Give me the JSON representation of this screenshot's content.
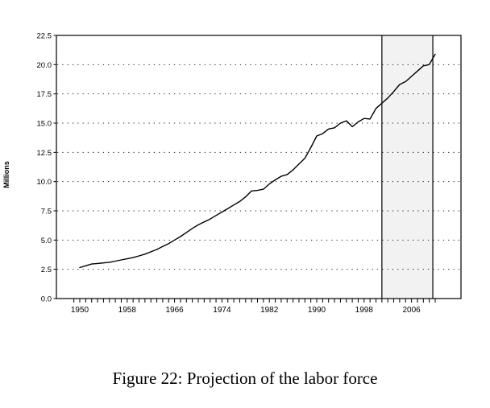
{
  "figure": {
    "caption": "Figure 22: Projection of the labor force"
  },
  "chart_data": {
    "type": "line",
    "title": "",
    "xlabel": "",
    "ylabel": "Millions",
    "ylim": [
      0,
      22.5
    ],
    "xlim": [
      1946,
      2014
    ],
    "grid": "horizontal-dotted",
    "legend": "none",
    "line_color": "#000000",
    "background_color": "#ffffff",
    "y_ticks": [
      0.0,
      2.5,
      5.0,
      7.5,
      10.0,
      12.5,
      15.0,
      17.5,
      20.0,
      22.5
    ],
    "y_tick_labels": [
      "0.0",
      "2.5",
      "5.0",
      "7.5",
      "10.0",
      "12.5",
      "15.0",
      "17.5",
      "20.0",
      "22.5"
    ],
    "x_major_ticks": [
      1950,
      1958,
      1966,
      1974,
      1982,
      1990,
      1998,
      2006
    ],
    "x_tick_labels": [
      "1950",
      "1958",
      "1966",
      "1974",
      "1982",
      "1990",
      "1998",
      "2006"
    ],
    "x_minor_ticks": {
      "from": 1949,
      "to": 2010,
      "step": 1
    },
    "projection_band": {
      "from": 2001,
      "to": 2009.6,
      "fill": "#f2f2f2",
      "border_color": "#000000"
    },
    "series": [
      {
        "name": "Labor force",
        "x": [
          1950,
          1951,
          1952,
          1953,
          1954,
          1955,
          1956,
          1957,
          1958,
          1959,
          1960,
          1961,
          1962,
          1963,
          1964,
          1965,
          1966,
          1967,
          1968,
          1969,
          1970,
          1971,
          1972,
          1973,
          1974,
          1975,
          1976,
          1977,
          1978,
          1979,
          1980,
          1981,
          1982,
          1983,
          1984,
          1985,
          1986,
          1987,
          1988,
          1989,
          1990,
          1991,
          1992,
          1993,
          1994,
          1995,
          1996,
          1997,
          1998,
          1999,
          2000,
          2001,
          2002,
          2003,
          2004,
          2005,
          2006,
          2007,
          2008,
          2009,
          2010
        ],
        "y": [
          2.65,
          2.8,
          2.95,
          3.0,
          3.05,
          3.1,
          3.2,
          3.3,
          3.4,
          3.5,
          3.65,
          3.8,
          4.0,
          4.2,
          4.45,
          4.7,
          5.0,
          5.3,
          5.65,
          6.0,
          6.3,
          6.55,
          6.8,
          7.1,
          7.4,
          7.7,
          8.0,
          8.3,
          8.7,
          9.2,
          9.25,
          9.35,
          9.8,
          10.15,
          10.45,
          10.6,
          11.0,
          11.5,
          12.0,
          12.9,
          13.9,
          14.1,
          14.5,
          14.6,
          15.0,
          15.2,
          14.7,
          15.1,
          15.4,
          15.35,
          16.25,
          16.7,
          17.15,
          17.7,
          18.3,
          18.55,
          19.0,
          19.45,
          19.9,
          20.0,
          20.9
        ]
      }
    ]
  }
}
